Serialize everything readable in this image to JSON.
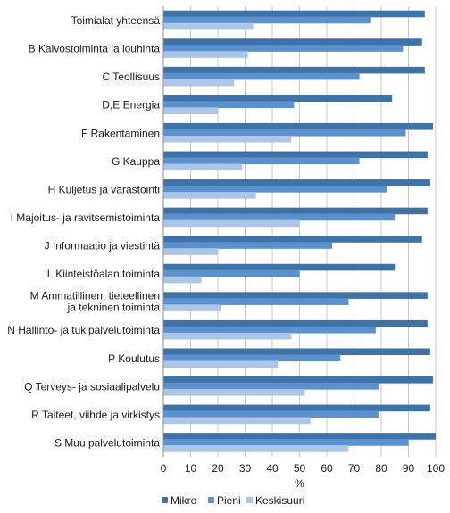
{
  "chart_data": {
    "type": "bar",
    "orientation": "horizontal",
    "title": "",
    "xlabel": "%",
    "ylabel": "",
    "xlim": [
      0,
      100
    ],
    "x_ticks": [
      0,
      10,
      20,
      30,
      40,
      50,
      60,
      70,
      80,
      90,
      100
    ],
    "grid": true,
    "legend_position": "bottom",
    "categories": [
      [
        "Toimialat yhteensä"
      ],
      [
        "B Kaivostoiminta ja louhinta"
      ],
      [
        "C Teollisuus"
      ],
      [
        "D,E Energia"
      ],
      [
        "F Rakentaminen"
      ],
      [
        "G Kauppa"
      ],
      [
        "H Kuljetus ja varastointi"
      ],
      [
        "I Majoitus- ja ravitsemistoiminta"
      ],
      [
        "J Informaatio ja viestintä"
      ],
      [
        "L Kiinteistöalan toiminta"
      ],
      [
        "M Ammatillinen, tieteellinen",
        "ja tekninen toiminta"
      ],
      [
        "N Hallinto- ja tukipalvelutoiminta"
      ],
      [
        "P Koulutus"
      ],
      [
        "Q Terveys- ja sosiaalipalvelu"
      ],
      [
        "R Taiteet, viihde ja virkistys"
      ],
      [
        "S Muu palvelutoiminta"
      ]
    ],
    "series": [
      {
        "name": "Mikro",
        "color": "#3f73a8",
        "values": [
          96,
          95,
          96,
          84,
          99,
          97,
          98,
          97,
          95,
          85,
          97,
          97,
          98,
          99,
          98,
          100
        ]
      },
      {
        "name": "Pieni",
        "color": "#5b91cf",
        "values": [
          76,
          88,
          72,
          48,
          89,
          72,
          82,
          85,
          62,
          50,
          68,
          78,
          65,
          79,
          79,
          90
        ]
      },
      {
        "name": "Keskisuuri",
        "color": "#adc6e8",
        "values": [
          33,
          31,
          26,
          20,
          47,
          29,
          34,
          50,
          20,
          14,
          21,
          47,
          42,
          52,
          54,
          68
        ]
      }
    ]
  }
}
